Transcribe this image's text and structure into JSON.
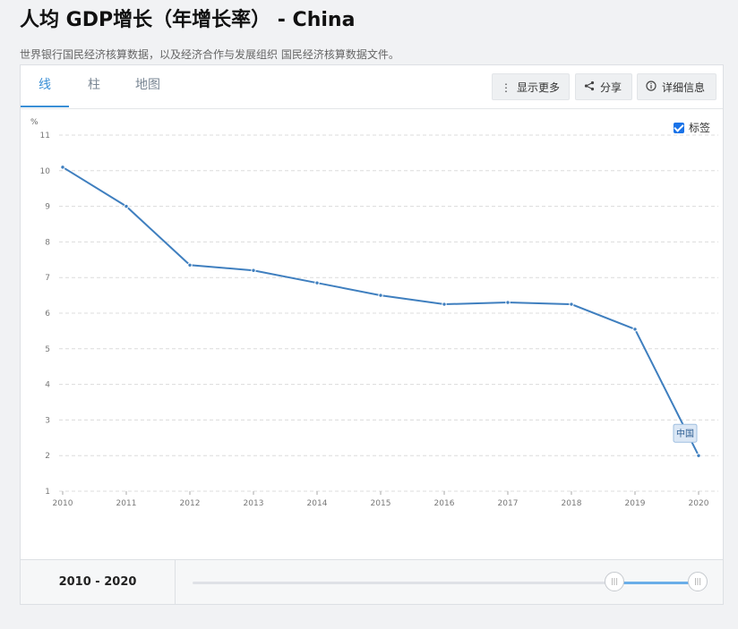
{
  "header": {
    "title": "人均 GDP增长（年增长率） - China",
    "subtitle": "世界银行国民经济核算数据，以及经济合作与发展组织 国民经济核算数据文件。"
  },
  "tabs": [
    {
      "label": "线",
      "active": true
    },
    {
      "label": "柱",
      "active": false
    },
    {
      "label": "地图",
      "active": false
    }
  ],
  "toolbar": {
    "more_label": "显示更多",
    "share_label": "分享",
    "details_label": "详细信息"
  },
  "label_toggle": {
    "label": "标签",
    "checked": true
  },
  "chart_data": {
    "type": "line",
    "ylabel": "%",
    "ylim": [
      1,
      11
    ],
    "yticks": [
      1,
      2,
      3,
      4,
      5,
      6,
      7,
      8,
      9,
      10,
      11
    ],
    "x": [
      "2010",
      "2011",
      "2012",
      "2013",
      "2014",
      "2015",
      "2016",
      "2017",
      "2018",
      "2019",
      "2020"
    ],
    "series": [
      {
        "name": "中国",
        "color": "#3f7fbf",
        "values": [
          10.1,
          9.0,
          7.35,
          7.2,
          6.85,
          6.5,
          6.25,
          6.3,
          6.25,
          5.55,
          2.0
        ]
      }
    ],
    "grid": true
  },
  "range": {
    "start": "2010",
    "separator": "-",
    "end": "2020"
  }
}
